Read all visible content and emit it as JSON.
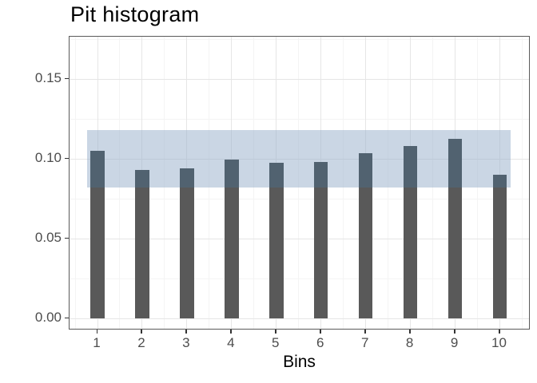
{
  "title": "Pit histogram",
  "chart_data": {
    "type": "bar",
    "title": "Pit histogram",
    "xlabel": "Bins",
    "ylabel": "",
    "categories": [
      1,
      2,
      3,
      4,
      5,
      6,
      7,
      8,
      9,
      10
    ],
    "values": [
      0.105,
      0.093,
      0.094,
      0.0995,
      0.0975,
      0.098,
      0.1035,
      0.108,
      0.1125,
      0.09
    ],
    "band": {
      "description": "confidence band for uniform PIT histogram",
      "x_range": [
        0.77,
        10.24
      ],
      "y_range": [
        0.082,
        0.118
      ]
    },
    "x_tick_labels": [
      "1",
      "2",
      "3",
      "4",
      "5",
      "6",
      "7",
      "8",
      "9",
      "10"
    ],
    "y_tick_labels": [
      "0.00",
      "0.05",
      "0.10",
      "0.15"
    ],
    "y_tick_values": [
      0,
      0.05,
      0.1,
      0.15
    ],
    "xlim": [
      0.374,
      10.688
    ],
    "ylim": [
      -0.0075,
      0.1765
    ],
    "bar_width": 0.313,
    "grid": true,
    "legend": false,
    "colors": {
      "bar": "#595959",
      "bar_in_band": "#516270",
      "band": "#96AECA",
      "band_alpha": 0.5,
      "grid_major": "#e6e6e6",
      "grid_minor": "#f4f4f4",
      "panel_border": "#5a5a5a",
      "tick_mark": "#333333",
      "tick_label": "#4d4d4d",
      "title": "#000000"
    }
  }
}
